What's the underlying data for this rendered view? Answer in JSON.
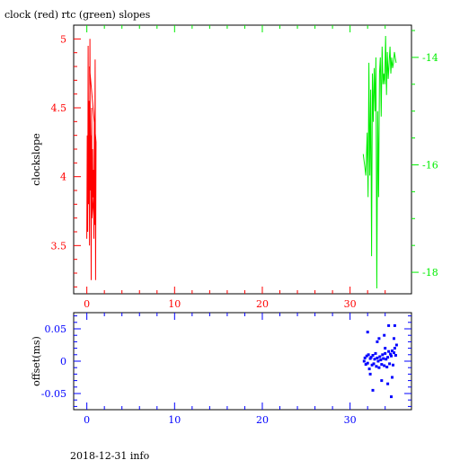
{
  "title": "clock (red) rtc (green) slopes",
  "footer": "2018-12-31 info",
  "colors": {
    "clock": "#ff0000",
    "rtc": "#00ee00",
    "offset": "#0000ff",
    "frame": "#000000"
  },
  "chart_data": [
    {
      "type": "line",
      "panel": "upper",
      "title": "clock (red) rtc (green) slopes",
      "xlabel": "",
      "ylabel": "clockslope",
      "xlim": [
        -1.5,
        37.0
      ],
      "xticks": [
        0,
        10,
        20,
        30
      ],
      "xtick_labels": [
        "0",
        "10",
        "20",
        "30"
      ],
      "left_axis": {
        "ylim": [
          3.15,
          5.1
        ],
        "ticks": [
          3.5,
          4,
          4.5,
          5
        ],
        "tick_labels": [
          "3.5",
          "4",
          "4.5",
          "5"
        ]
      },
      "right_axis": {
        "ylim": [
          -18.4,
          -13.4
        ],
        "ticks": [
          -14,
          -16,
          -18
        ],
        "tick_labels": [
          "-14",
          "-16",
          "-18"
        ]
      },
      "grid": false,
      "series": [
        {
          "name": "clock",
          "axis": "left",
          "x": [
            0.0,
            0.05,
            0.1,
            0.15,
            0.2,
            0.25,
            0.3,
            0.35,
            0.4,
            0.45,
            0.5,
            0.55,
            0.6,
            0.65,
            0.7,
            0.75,
            0.8,
            0.85,
            0.9,
            0.95,
            1.0,
            1.05,
            0.3,
            0.5,
            0.8
          ],
          "y": [
            3.55,
            4.3,
            3.6,
            4.95,
            3.8,
            4.55,
            3.5,
            5.0,
            3.9,
            4.3,
            3.25,
            4.5,
            3.7,
            4.2,
            3.85,
            4.05,
            3.55,
            4.4,
            3.65,
            4.85,
            3.25,
            4.25,
            4.8,
            3.95,
            3.7
          ]
        },
        {
          "name": "rtc",
          "axis": "right",
          "x": [
            31.5,
            31.65,
            31.8,
            31.95,
            32.05,
            32.15,
            32.25,
            32.35,
            32.45,
            32.55,
            32.65,
            32.75,
            32.85,
            32.95,
            33.05,
            33.15,
            33.25,
            33.35,
            33.45,
            33.55,
            33.65,
            33.75,
            33.85,
            33.95,
            34.05,
            34.15,
            34.25,
            34.35,
            34.45,
            34.55,
            34.65,
            34.75,
            34.85,
            34.95,
            35.05,
            35.15,
            35.25
          ],
          "y": [
            -15.8,
            -16.0,
            -16.2,
            -15.4,
            -16.6,
            -14.1,
            -16.2,
            -14.6,
            -17.7,
            -14.3,
            -15.2,
            -14.2,
            -15.0,
            -14.0,
            -18.3,
            -15.0,
            -16.6,
            -14.3,
            -14.0,
            -15.1,
            -13.8,
            -14.5,
            -14.3,
            -14.5,
            -13.6,
            -14.7,
            -13.9,
            -14.4,
            -14.1,
            -13.8,
            -14.3,
            -14.0,
            -14.2,
            -14.1,
            -13.9,
            -14.0,
            -14.1
          ]
        }
      ]
    },
    {
      "type": "scatter",
      "panel": "lower",
      "xlabel": "",
      "ylabel": "offset(ms)",
      "xlim": [
        -1.5,
        37.0
      ],
      "ylim": [
        -0.075,
        0.075
      ],
      "xticks": [
        0,
        10,
        20,
        30
      ],
      "xtick_labels": [
        "0",
        "10",
        "20",
        "30"
      ],
      "yticks": [
        0.05,
        0,
        -0.05
      ],
      "ytick_labels": [
        "0.05",
        "0",
        "-0.05"
      ],
      "grid": false,
      "series": [
        {
          "name": "offset",
          "x": [
            31.6,
            31.7,
            31.8,
            31.9,
            32.0,
            32.1,
            32.2,
            32.3,
            32.4,
            32.5,
            32.6,
            32.7,
            32.8,
            32.9,
            33.0,
            33.1,
            33.2,
            33.3,
            33.4,
            33.5,
            33.6,
            33.7,
            33.8,
            33.9,
            34.0,
            34.1,
            34.2,
            34.3,
            34.4,
            34.5,
            34.6,
            34.7,
            34.8,
            34.9,
            35.0,
            35.1,
            35.2,
            35.3,
            32.0,
            32.3,
            33.1,
            33.6,
            34.0,
            34.4,
            34.7,
            35.0,
            34.3,
            33.9,
            34.8,
            35.1,
            32.6,
            33.3
          ],
          "y": [
            0.0,
            0.005,
            -0.005,
            0.008,
            -0.003,
            0.01,
            -0.012,
            0.004,
            0.006,
            -0.006,
            0.009,
            -0.004,
            0.003,
            0.012,
            -0.008,
            0.005,
            0.0,
            -0.01,
            0.007,
            0.002,
            -0.005,
            0.01,
            0.004,
            -0.007,
            0.012,
            0.003,
            -0.009,
            0.006,
            0.015,
            -0.004,
            0.011,
            0.008,
            0.016,
            -0.006,
            0.013,
            0.02,
            0.009,
            0.025,
            0.045,
            -0.02,
            0.03,
            -0.03,
            0.02,
            0.055,
            -0.055,
            0.035,
            -0.035,
            0.04,
            -0.025,
            0.055,
            -0.045,
            0.035
          ]
        }
      ]
    }
  ]
}
